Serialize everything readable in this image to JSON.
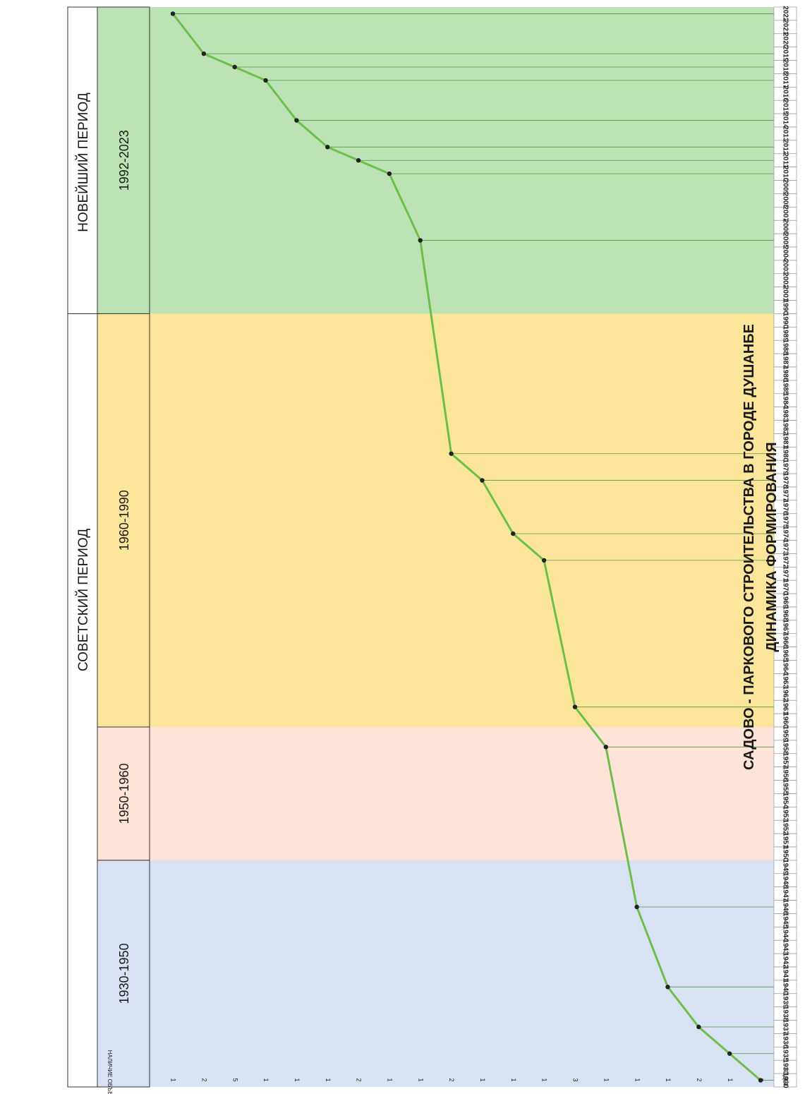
{
  "chart_data": {
    "type": "line",
    "title": "ДИНАМИКА ФОРМИРОВАНИЯ",
    "subtitle": "САДОВО - ПАРКОВОГО СТРОИТЕЛЬСТВА В ГОРОДЕ ДУШАНБЕ",
    "count_header": "НАЛИЧИЕ ОБЪЕКТОВ",
    "years_header": "ГОДЫ",
    "periods": [
      {
        "label": "НОВЕЙШИЙ ПЕРИОД",
        "start_year": 1990,
        "end_year": 2022
      },
      {
        "label": "СОВЕТСКИЙ ПЕРИОД",
        "start_year": 1950,
        "end_year": 1990
      }
    ],
    "ranges": [
      {
        "label": "1992-2023",
        "start_year": 1990,
        "end_year": 2022,
        "color": "#bde2b5"
      },
      {
        "label": "1960-1990",
        "start_year": 1960,
        "end_year": 1990,
        "color": "#fbe59b"
      },
      {
        "label": "1950-1960",
        "start_year": 1950,
        "end_year": 1960,
        "color": "#fde3d8"
      },
      {
        "label": "1930-1950",
        "start_year": 1930,
        "end_year": 1950,
        "color": "#d8e2f3"
      }
    ],
    "years": [
      2022,
      2021,
      2020,
      2019,
      2018,
      2017,
      2016,
      2015,
      2014,
      2013,
      2012,
      2011,
      2010,
      2009,
      2008,
      2007,
      2006,
      2005,
      2004,
      2003,
      2002,
      2001,
      1990,
      1990,
      1989,
      1988,
      1987,
      1986,
      1985,
      1984,
      1983,
      1982,
      1981,
      1980,
      1979,
      1978,
      1977,
      1976,
      1975,
      1974,
      1973,
      1972,
      1971,
      1970,
      1969,
      1968,
      1967,
      1966,
      1965,
      1964,
      1963,
      1962,
      1961,
      1960,
      1959,
      1958,
      1957,
      1956,
      1955,
      1954,
      1953,
      1952,
      1951,
      1950,
      1949,
      1948,
      1947,
      1946,
      1945,
      1944,
      1943,
      1942,
      1941,
      1940,
      1939,
      1938,
      1937,
      1936,
      1935,
      1933,
      1930
    ],
    "points": [
      {
        "year": 2022,
        "count": "1"
      },
      {
        "year": 2019,
        "count": "2"
      },
      {
        "year": 2018,
        "count": "5"
      },
      {
        "year": 2017,
        "count": "1"
      },
      {
        "year": 2014,
        "count": "1"
      },
      {
        "year": 2012,
        "count": "1"
      },
      {
        "year": 2011,
        "count": "2"
      },
      {
        "year": 2010,
        "count": "1"
      },
      {
        "year": 2005,
        "count": "1"
      },
      {
        "year": 1980,
        "count": "2"
      },
      {
        "year": 1978,
        "count": "1"
      },
      {
        "year": 1974,
        "count": "1"
      },
      {
        "year": 1972,
        "count": "1"
      },
      {
        "year": 1961,
        "count": "3"
      },
      {
        "year": 1958,
        "count": "1"
      },
      {
        "year": 1946,
        "count": "1"
      },
      {
        "year": 1940,
        "count": "1"
      },
      {
        "year": 1937,
        "count": "2"
      },
      {
        "year": 1935,
        "count": "1"
      },
      {
        "year": 1930,
        "count": "3"
      }
    ],
    "line_color": "#6cc04a",
    "marker_color": "#222222",
    "hline_color": "#4c9a3c"
  }
}
